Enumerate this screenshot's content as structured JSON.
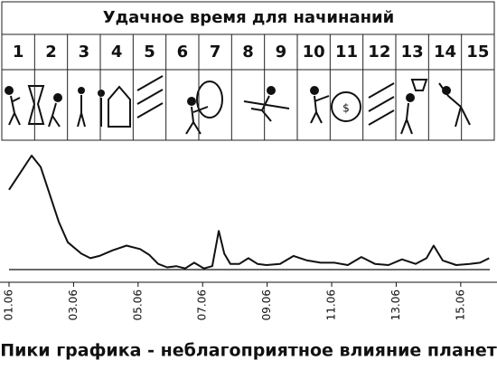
{
  "header": {
    "title": "Удачное время для начинаний",
    "days": [
      1,
      2,
      3,
      4,
      5,
      6,
      7,
      8,
      9,
      10,
      11,
      12,
      13,
      14,
      15
    ]
  },
  "chart_data": {
    "type": "line",
    "x": [
      1,
      1.28,
      1.7,
      1.98,
      2.26,
      2.54,
      2.82,
      3.24,
      3.52,
      3.8,
      4.22,
      4.64,
      5.06,
      5.34,
      5.62,
      5.9,
      6.18,
      6.46,
      6.74,
      7.04,
      7.3,
      7.5,
      7.67,
      7.86,
      8.14,
      8.42,
      8.7,
      8.98,
      9.4,
      9.82,
      10.24,
      10.66,
      11.08,
      11.5,
      11.92,
      12.34,
      12.76,
      13.18,
      13.6,
      13.94,
      14.16,
      14.44,
      14.86,
      15.28,
      15.6,
      15.88
    ],
    "values": [
      70,
      82,
      100,
      90,
      66,
      42,
      24,
      14,
      10,
      12,
      17,
      21,
      18,
      13,
      5,
      2,
      3,
      1,
      6,
      1,
      3,
      34,
      14,
      5,
      5,
      10,
      5,
      4,
      5,
      12,
      8,
      6,
      6,
      4,
      11,
      5,
      4,
      9,
      5,
      10,
      21,
      8,
      4,
      5,
      6,
      10
    ],
    "color": "#111111",
    "xlim": [
      1,
      15.9
    ],
    "ylim": [
      0,
      110
    ],
    "xticks": [
      {
        "value": 1,
        "label": "01.06"
      },
      {
        "value": 3,
        "label": "03.06"
      },
      {
        "value": 5,
        "label": "05.06"
      },
      {
        "value": 7,
        "label": "07.06"
      },
      {
        "value": 9,
        "label": "09.06"
      },
      {
        "value": 11,
        "label": "11.06"
      },
      {
        "value": 13,
        "label": "13.06"
      },
      {
        "value": 15,
        "label": "15.06"
      }
    ],
    "caption": "Пики графика - неблагоприятное влияние планет"
  }
}
